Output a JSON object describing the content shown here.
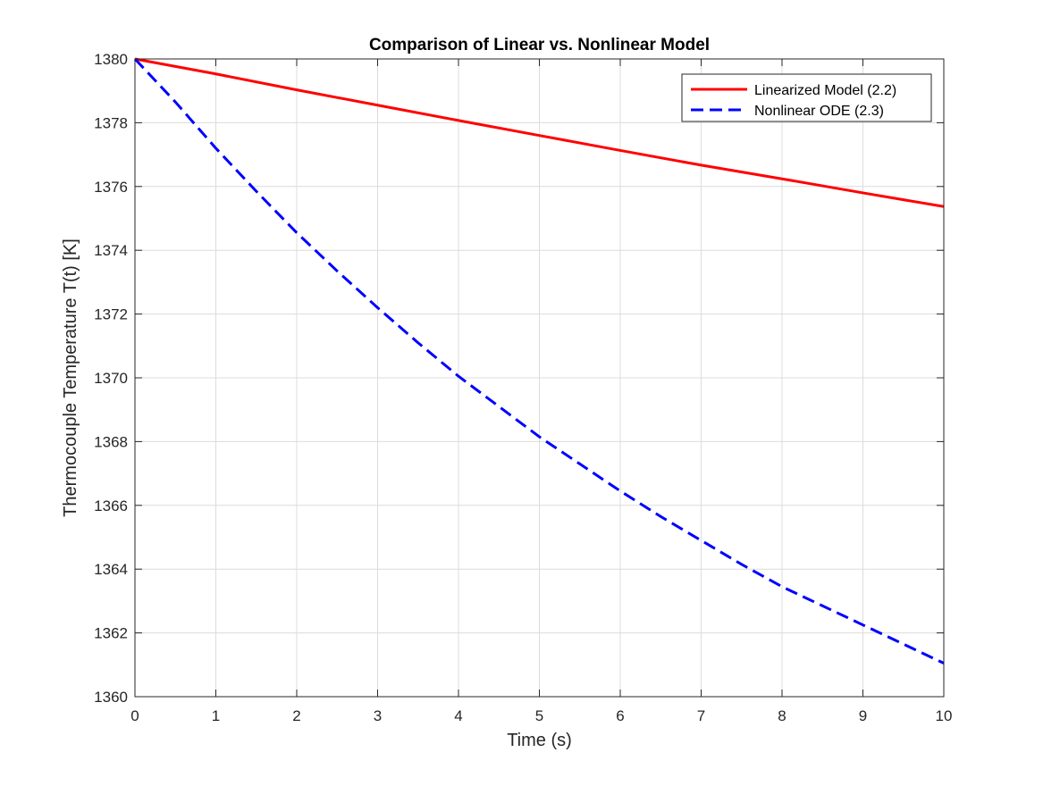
{
  "chart_data": {
    "type": "line",
    "title": "Comparison of Linear vs. Nonlinear Model",
    "xlabel": "Time (s)",
    "ylabel": "Thermocouple Temperature T(t) [K]",
    "xlim": [
      0,
      10
    ],
    "ylim": [
      1360,
      1380
    ],
    "xticks": [
      0,
      1,
      2,
      3,
      4,
      5,
      6,
      7,
      8,
      9,
      10
    ],
    "yticks": [
      1360,
      1362,
      1364,
      1366,
      1368,
      1370,
      1372,
      1374,
      1376,
      1378,
      1380
    ],
    "grid": true,
    "legend_location": "top-right",
    "series": [
      {
        "name": "Linearized Model (2.2)",
        "color": "#ff0000",
        "line_style": "solid",
        "x": [
          0,
          1,
          2,
          3,
          4,
          5,
          6,
          7,
          8,
          9,
          10
        ],
        "values": [
          1380.0,
          1379.53,
          1379.03,
          1378.55,
          1378.07,
          1377.6,
          1377.13,
          1376.67,
          1376.24,
          1375.8,
          1375.37
        ]
      },
      {
        "name": "Nonlinear ODE (2.3)",
        "color": "#0000ff",
        "line_style": "dashed",
        "x": [
          0,
          0.5,
          1,
          1.5,
          2,
          2.5,
          3,
          3.5,
          4,
          4.5,
          5,
          5.5,
          6,
          6.5,
          7,
          7.5,
          8,
          8.5,
          9,
          9.5,
          10
        ],
        "values": [
          1380.0,
          1378.65,
          1377.2,
          1375.85,
          1374.55,
          1373.35,
          1372.2,
          1371.1,
          1370.05,
          1369.1,
          1368.15,
          1367.3,
          1366.45,
          1365.65,
          1364.9,
          1364.15,
          1363.45,
          1362.85,
          1362.25,
          1361.65,
          1361.05
        ]
      }
    ]
  }
}
